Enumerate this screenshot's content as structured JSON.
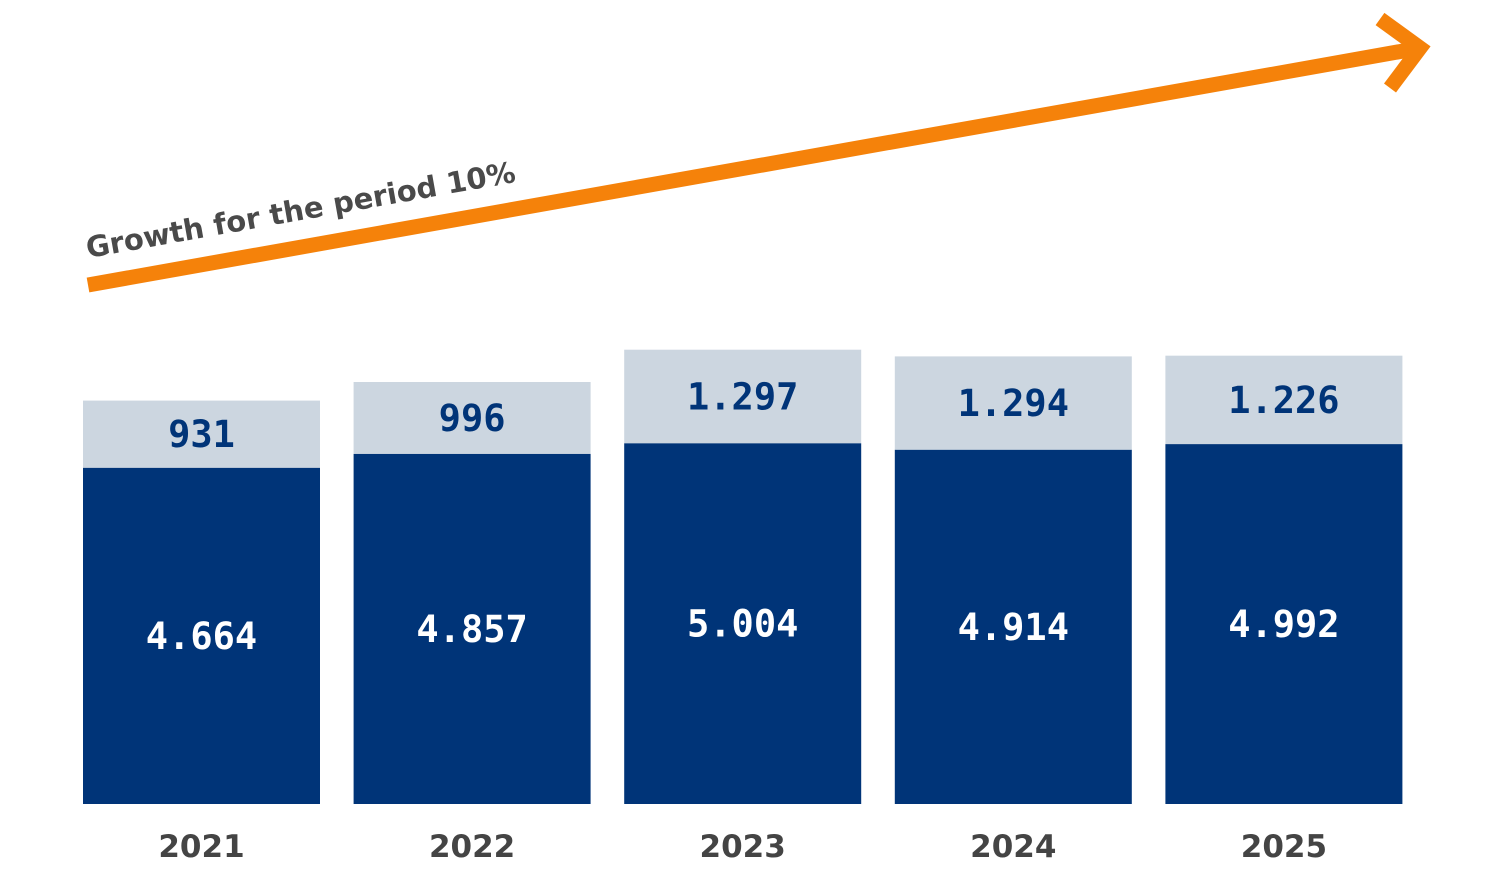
{
  "chart_data": {
    "type": "bar",
    "stacked": true,
    "categories": [
      "2021",
      "2022",
      "2023",
      "2024",
      "2025"
    ],
    "series": [
      {
        "values": [
          4664,
          4857,
          5004,
          4914,
          4992
        ],
        "labels": [
          "4.664",
          "4.857",
          "5.004",
          "4.914",
          "4.992"
        ],
        "color": "#003478"
      },
      {
        "values": [
          931,
          996,
          1297,
          1294,
          1226
        ],
        "labels": [
          "931",
          "996",
          "1.297",
          "1.294",
          "1.226"
        ],
        "color": "#ccd6e0"
      }
    ],
    "annotation": {
      "text": "Growth for the period 10%",
      "arrow_color": "#f5820a",
      "text_color": "#4a4a4a"
    },
    "colors": {
      "dark_label": "#ffffff",
      "light_label": "#003478",
      "year_label": "#444444"
    },
    "grid": false,
    "legend": "none"
  }
}
